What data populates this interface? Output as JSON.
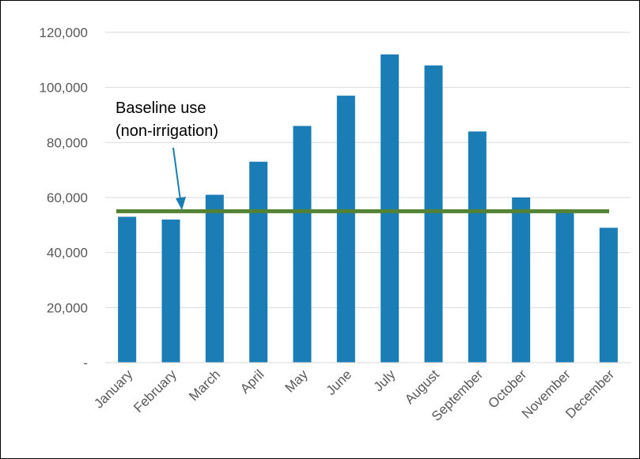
{
  "chart_data": {
    "type": "bar",
    "categories": [
      "January",
      "February",
      "March",
      "April",
      "May",
      "June",
      "July",
      "August",
      "September",
      "October",
      "November",
      "December"
    ],
    "series": [
      {
        "values": [
          53000,
          52000,
          61000,
          73000,
          86000,
          97000,
          112000,
          108000,
          84000,
          60000,
          55000,
          49000
        ]
      }
    ],
    "y_ticks": [
      0,
      20000,
      40000,
      60000,
      80000,
      100000,
      120000
    ],
    "y_tick_labels": [
      "-",
      "20,000",
      "40,000",
      "60,000",
      "80,000",
      "100,000",
      "120,000"
    ],
    "ylim": [
      0,
      120000
    ],
    "grid": true,
    "baseline": {
      "value": 55000,
      "label_line1": "Baseline use",
      "label_line2": "(non-irrigation)"
    },
    "colors": {
      "bar": "#1a7db5",
      "baseline": "#548235",
      "gridline": "#d9d9d9",
      "axis_text": "#595959"
    }
  }
}
